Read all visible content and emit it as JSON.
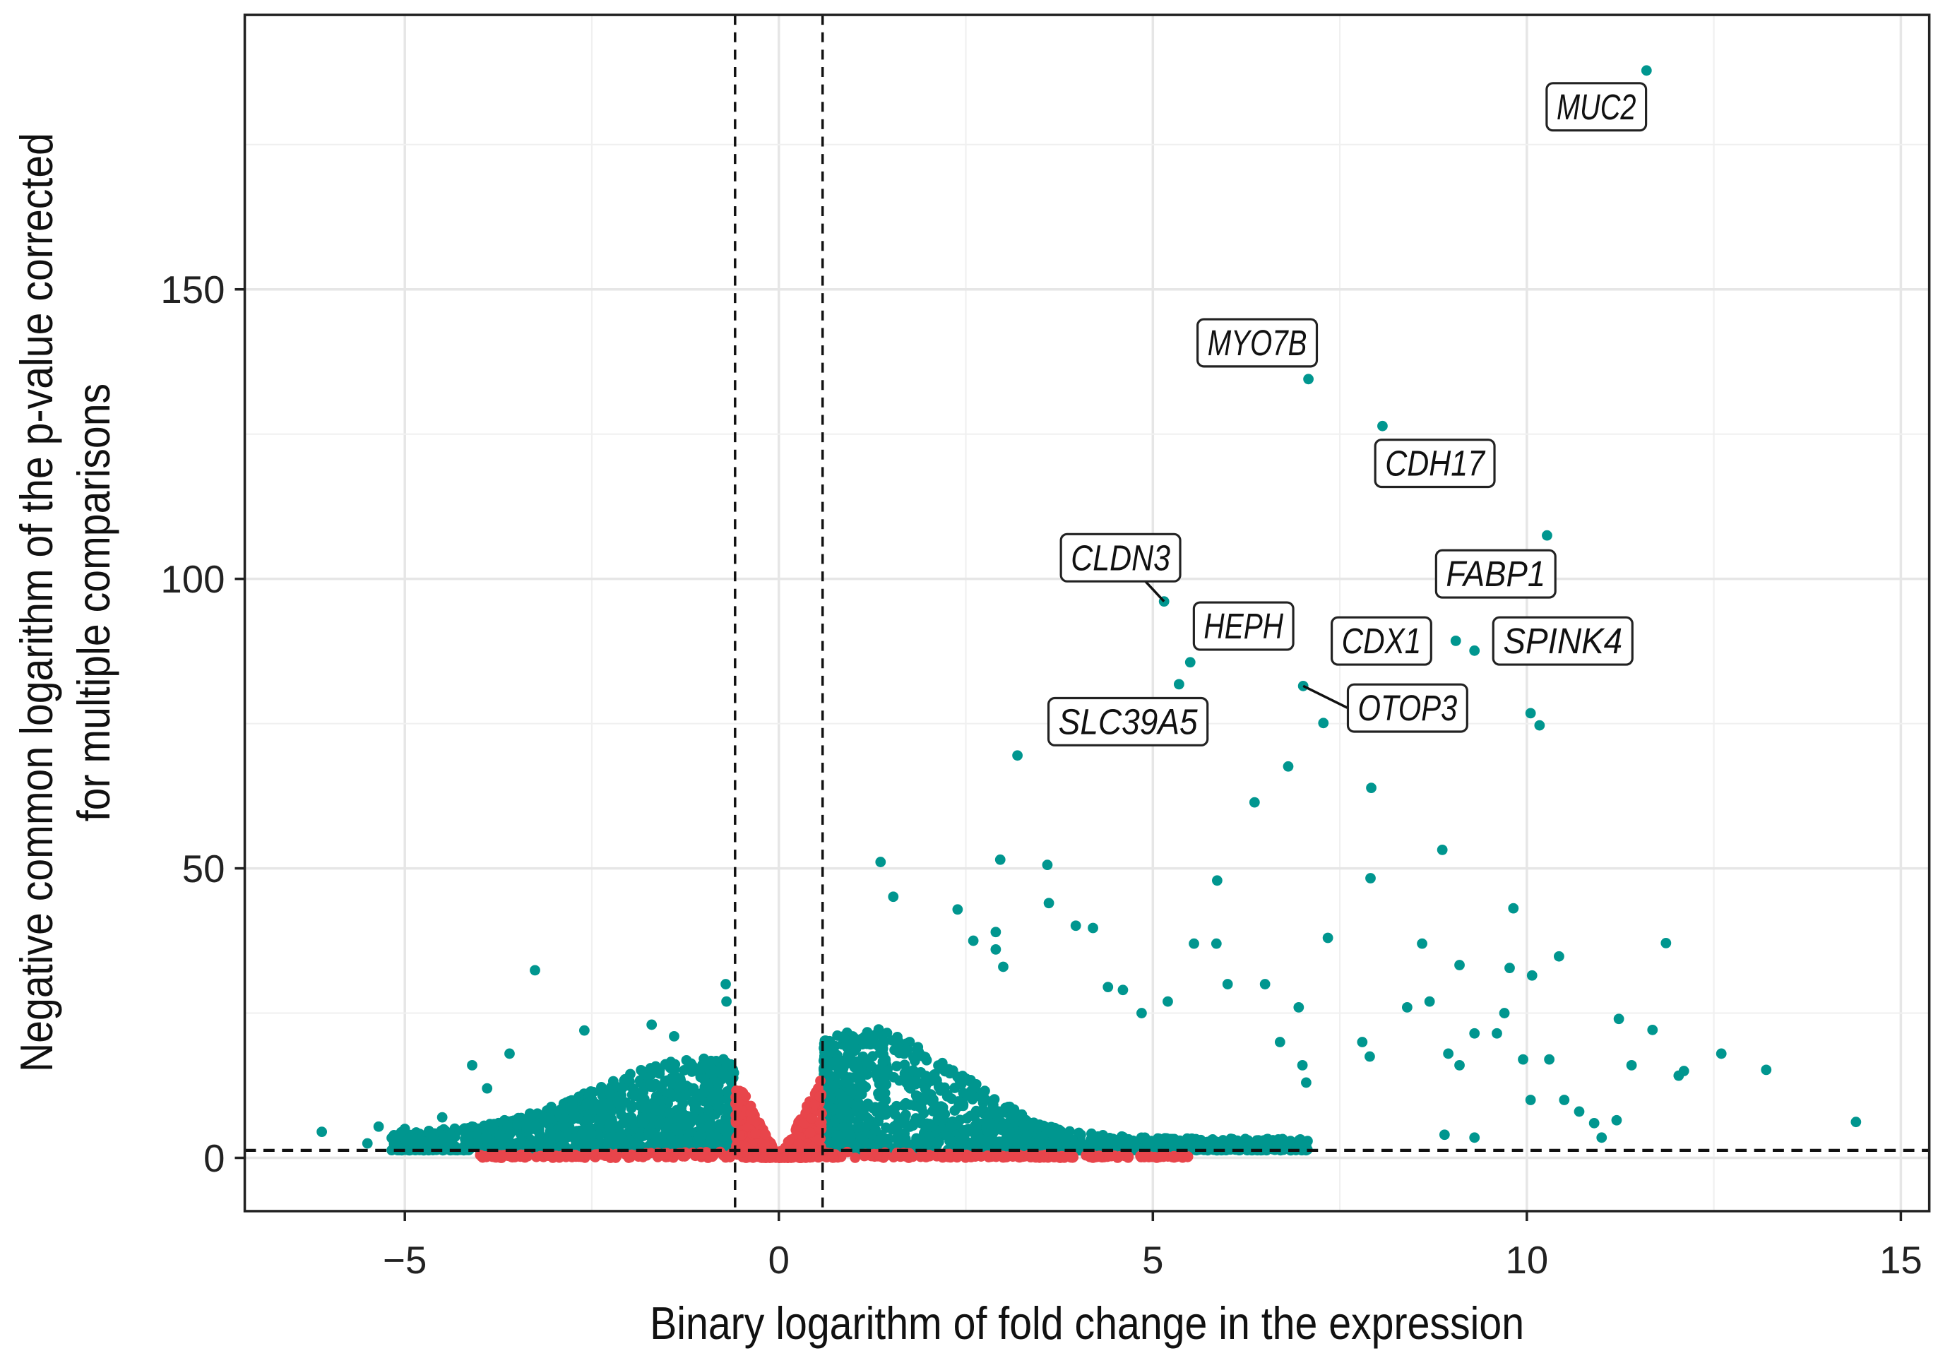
{
  "chart_data": {
    "type": "scatter",
    "xlabel": "Binary logarithm of fold change in the expression",
    "ylabel_lines": [
      "Negative common logarithm of the p-value corrected",
      "for multiple comparisons"
    ],
    "xlim": [
      -7.14,
      15.38
    ],
    "ylim": [
      -9.2,
      197.4
    ],
    "x_ticks": [
      -5,
      0,
      5,
      10,
      15
    ],
    "x_tick_labels": [
      "−5",
      "0",
      "5",
      "10",
      "15"
    ],
    "y_ticks": [
      0,
      50,
      100,
      150
    ],
    "y_tick_labels": [
      "0",
      "50",
      "100",
      "150"
    ],
    "grid": true,
    "thresholds": {
      "log2fc": [
        -0.585,
        0.585
      ],
      "neg_log10_p": 1.3
    },
    "colors": {
      "significant": "#00968f",
      "not_significant": "#e8454b",
      "grid": "#e6e6e6"
    },
    "labeled_points": [
      {
        "gene": "MUC2",
        "x": 11.6,
        "y": 187.8
      },
      {
        "gene": "MYO7B",
        "x": 7.08,
        "y": 134.5
      },
      {
        "gene": "CDH17",
        "x": 8.07,
        "y": 126.4
      },
      {
        "gene": "FABP1",
        "x": 10.27,
        "y": 107.5
      },
      {
        "gene": "CLDN3",
        "x": 5.15,
        "y": 96.1
      },
      {
        "gene": "HEPH",
        "x": 5.5,
        "y": 85.6
      },
      {
        "gene": "SLC39A5",
        "x": 5.35,
        "y": 81.8
      },
      {
        "gene": "CDX1",
        "x": 9.05,
        "y": 89.3
      },
      {
        "gene": "SPINK4",
        "x": 9.3,
        "y": 87.6
      },
      {
        "gene": "OTOP3",
        "x": 7.01,
        "y": 81.5
      }
    ],
    "other_significant_points": [
      [
        7.28,
        75.1
      ],
      [
        10.05,
        76.8
      ],
      [
        10.17,
        74.7
      ],
      [
        3.19,
        69.5
      ],
      [
        6.81,
        67.6
      ],
      [
        7.92,
        63.9
      ],
      [
        6.36,
        61.4
      ],
      [
        8.87,
        53.2
      ],
      [
        1.36,
        51.1
      ],
      [
        2.96,
        51.5
      ],
      [
        3.59,
        50.6
      ],
      [
        5.86,
        47.9
      ],
      [
        7.91,
        48.3
      ],
      [
        1.53,
        45.1
      ],
      [
        3.61,
        44.0
      ],
      [
        9.82,
        43.1
      ],
      [
        2.39,
        42.9
      ],
      [
        3.97,
        40.1
      ],
      [
        4.2,
        39.7
      ],
      [
        11.86,
        37.1
      ],
      [
        7.34,
        38.0
      ],
      [
        -3.26,
        32.4
      ],
      [
        -0.71,
        30.0
      ],
      [
        -0.7,
        27.0
      ],
      [
        10.43,
        34.8
      ],
      [
        9.1,
        33.3
      ],
      [
        9.77,
        32.8
      ],
      [
        10.07,
        31.5
      ],
      [
        11.23,
        24.0
      ],
      [
        11.68,
        22.1
      ],
      [
        12.6,
        18.0
      ],
      [
        13.2,
        15.2
      ],
      [
        14.4,
        6.2
      ],
      [
        11.4,
        16.0
      ],
      [
        12.03,
        14.2
      ],
      [
        12.1,
        15.0
      ],
      [
        -6.11,
        4.5
      ],
      [
        -5.35,
        5.4
      ],
      [
        2.9,
        39.0
      ],
      [
        2.9,
        36.0
      ],
      [
        3.0,
        33.0
      ],
      [
        2.6,
        37.5
      ],
      [
        4.4,
        29.5
      ],
      [
        4.6,
        29.0
      ],
      [
        4.85,
        25.0
      ],
      [
        5.2,
        27.0
      ],
      [
        5.55,
        37.0
      ],
      [
        5.85,
        37.0
      ],
      [
        6.0,
        30.0
      ],
      [
        6.5,
        30.0
      ],
      [
        6.7,
        20.0
      ],
      [
        6.95,
        26.0
      ],
      [
        7.0,
        16.0
      ],
      [
        7.05,
        13.0
      ],
      [
        7.8,
        20.0
      ],
      [
        7.9,
        17.5
      ],
      [
        8.4,
        26.0
      ],
      [
        8.6,
        37.0
      ],
      [
        8.7,
        27.0
      ],
      [
        8.95,
        18.0
      ],
      [
        9.1,
        16.0
      ],
      [
        9.3,
        21.5
      ],
      [
        9.6,
        21.5
      ],
      [
        9.7,
        25.0
      ],
      [
        9.95,
        17.0
      ],
      [
        10.05,
        10.0
      ],
      [
        10.3,
        17.0
      ],
      [
        10.5,
        10.0
      ],
      [
        10.7,
        8.0
      ],
      [
        10.9,
        6.0
      ],
      [
        11.0,
        3.5
      ],
      [
        11.2,
        6.5
      ],
      [
        8.9,
        4.0
      ],
      [
        9.3,
        3.5
      ],
      [
        -4.1,
        16.0
      ],
      [
        -3.6,
        18.0
      ],
      [
        -2.6,
        22.0
      ],
      [
        -1.7,
        23.0
      ],
      [
        -1.4,
        21.0
      ],
      [
        -3.9,
        12.0
      ],
      [
        -4.5,
        7.0
      ],
      [
        -5.0,
        5.0
      ],
      [
        -4.8,
        3.0
      ],
      [
        -5.5,
        2.5
      ]
    ],
    "series_note_points_dense": true
  }
}
